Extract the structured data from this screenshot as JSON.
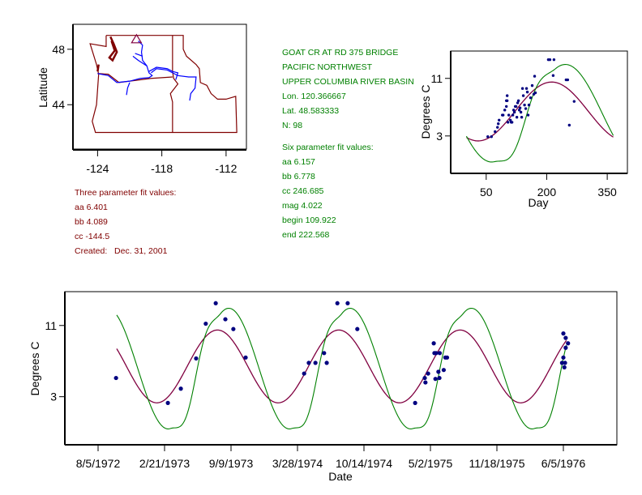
{
  "colors": {
    "three_param": "#800040",
    "six_param": "#008000",
    "points": "#000080",
    "map_borders": "#800000",
    "map_rivers": "#0000ff",
    "axis": "#000000"
  },
  "site_info": {
    "name": "GOAT CR AT RD 375 BRIDGE",
    "region": "PACIFIC NORTHWEST",
    "basin": "UPPER COLUMBIA RIVER BASIN",
    "lon": "Lon. 120.366667",
    "lat": "Lat. 48.583333",
    "n": "N: 98"
  },
  "three_param": {
    "title": "Three parameter fit values:",
    "aa": "aa 6.401",
    "bb": "bb 4.089",
    "cc": "cc -144.5",
    "created": "Created:   Dec. 31, 2001",
    "values": {
      "aa": 6.401,
      "bb": 4.089,
      "cc": -144.5
    }
  },
  "six_param": {
    "title": "Six parameter fit values:",
    "aa": "aa 6.157",
    "bb": "bb 6.778",
    "cc": "cc 246.685",
    "mag": "mag 4.022",
    "begin": "begin 109.922",
    "end": "end 222.568",
    "values": {
      "aa": 6.157,
      "bb": 6.778,
      "cc": 246.685,
      "mag": 4.022,
      "begin": 109.922,
      "end": 222.568
    }
  },
  "chart_data": [
    {
      "name": "location-map",
      "type": "scatter",
      "title": "",
      "xlabel": "",
      "ylabel": "Latitude",
      "xlim": [
        -126.3,
        -110.1
      ],
      "ylim": [
        40.8,
        49.8
      ],
      "xticks": [
        -124,
        -118,
        -112
      ],
      "yticks": [
        48,
        44
      ],
      "xtick_labels": [
        "-124",
        "-118",
        "-112"
      ],
      "ytick_labels": [
        "48",
        "44"
      ],
      "site_marker": {
        "lon": -120.366667,
        "lat": 48.583333,
        "symbol": "triangle"
      }
    },
    {
      "name": "seasonal-chart",
      "type": "line",
      "title": "",
      "xlabel": "Day",
      "ylabel": "Degrees C",
      "xlim": [
        -38,
        400
      ],
      "ylim": [
        -2.2,
        14.8
      ],
      "xticks": [
        50,
        200,
        350
      ],
      "yticks": [
        11,
        3
      ],
      "xtick_labels": [
        "50",
        "200",
        "350"
      ],
      "ytick_labels": [
        "11",
        "3"
      ],
      "points": [
        [
          54,
          2.9
        ],
        [
          63,
          2.9
        ],
        [
          72,
          3.6
        ],
        [
          78,
          4.2
        ],
        [
          80,
          4.7
        ],
        [
          82,
          5.2
        ],
        [
          90,
          5.9
        ],
        [
          92,
          5.9
        ],
        [
          96,
          6.6
        ],
        [
          100,
          7.1
        ],
        [
          100,
          7.9
        ],
        [
          102,
          7.9
        ],
        [
          102,
          8.6
        ],
        [
          104,
          4.9
        ],
        [
          106,
          5.9
        ],
        [
          110,
          5.2
        ],
        [
          112,
          4.9
        ],
        [
          114,
          4.9
        ],
        [
          116,
          5.9
        ],
        [
          118,
          6.6
        ],
        [
          120,
          6.3
        ],
        [
          122,
          7.1
        ],
        [
          124,
          7.1
        ],
        [
          126,
          5.6
        ],
        [
          128,
          7.6
        ],
        [
          130,
          7.9
        ],
        [
          132,
          6.6
        ],
        [
          134,
          6.9
        ],
        [
          136,
          6.3
        ],
        [
          138,
          5.6
        ],
        [
          140,
          9.6
        ],
        [
          142,
          8.6
        ],
        [
          145,
          7.3
        ],
        [
          148,
          6.8
        ],
        [
          150,
          9.6
        ],
        [
          152,
          9.1
        ],
        [
          154,
          5.9
        ],
        [
          156,
          7.3
        ],
        [
          160,
          8.3
        ],
        [
          164,
          10.0
        ],
        [
          168,
          8.8
        ],
        [
          170,
          11.3
        ],
        [
          172,
          9.0
        ],
        [
          204,
          13.6
        ],
        [
          208,
          13.6
        ],
        [
          216,
          11.4
        ],
        [
          218,
          13.6
        ],
        [
          248,
          10.8
        ],
        [
          252,
          10.8
        ],
        [
          256,
          4.5
        ],
        [
          268,
          7.8
        ]
      ]
    },
    {
      "name": "time-series-chart",
      "type": "line",
      "title": "",
      "xlabel": "Date",
      "ylabel": "Degrees C",
      "x_units": "days since 8/5/1972",
      "xlim": [
        -100,
        1561
      ],
      "ylim": [
        -2.4,
        14.8
      ],
      "xticks": [
        0,
        200,
        400,
        600,
        800,
        1000,
        1200,
        1400
      ],
      "xtick_labels": [
        "8/5/1972",
        "2/21/1973",
        "9/9/1973",
        "3/28/1974",
        "10/14/1974",
        "5/2/1975",
        "11/18/1975",
        "6/5/1976"
      ],
      "yticks": [
        11,
        3
      ],
      "ytick_labels": [
        "11",
        "3"
      ],
      "curve_range": [
        56,
        1410
      ],
      "points": [
        [
          54,
          5.1
        ],
        [
          210,
          2.3
        ],
        [
          249,
          3.9
        ],
        [
          295,
          7.3
        ],
        [
          324,
          11.2
        ],
        [
          354,
          13.5
        ],
        [
          383,
          11.7
        ],
        [
          407,
          10.6
        ],
        [
          444,
          7.4
        ],
        [
          620,
          5.6
        ],
        [
          634,
          6.8
        ],
        [
          654,
          6.8
        ],
        [
          680,
          7.9
        ],
        [
          688,
          6.8
        ],
        [
          720,
          13.5
        ],
        [
          751,
          13.5
        ],
        [
          780,
          10.6
        ],
        [
          954,
          2.3
        ],
        [
          983,
          5.1
        ],
        [
          985,
          4.6
        ],
        [
          993,
          5.6
        ],
        [
          1010,
          9.0
        ],
        [
          1012,
          7.9
        ],
        [
          1015,
          5.0
        ],
        [
          1017,
          7.9
        ],
        [
          1024,
          5.8
        ],
        [
          1027,
          5.1
        ],
        [
          1028,
          7.9
        ],
        [
          1040,
          6.0
        ],
        [
          1045,
          7.4
        ],
        [
          1050,
          7.4
        ],
        [
          1400,
          10.1
        ],
        [
          1407,
          9.6
        ],
        [
          1414,
          9.0
        ],
        [
          1407,
          8.5
        ],
        [
          1400,
          7.4
        ],
        [
          1405,
          6.8
        ],
        [
          1403,
          6.3
        ],
        [
          1396,
          6.8
        ]
      ]
    }
  ]
}
